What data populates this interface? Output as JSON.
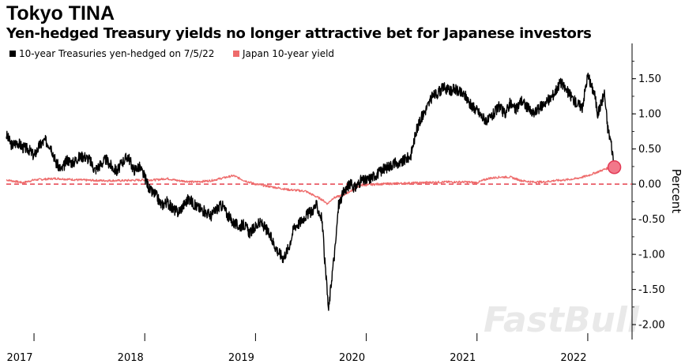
{
  "page": {
    "title": "Tokyo TINA",
    "subtitle": "Yen-hedged Treasury yields no longer attractive bet for Japanese investors",
    "watermark": "FastBull"
  },
  "colors": {
    "series1": "#000000",
    "series2": "#ee6b6b",
    "zero_line": "#e8505b",
    "marker": "#f2788a"
  },
  "chart_data": {
    "type": "line",
    "title": "Tokyo TINA",
    "subtitle": "Yen-hedged Treasury yields no longer attractive bet for Japanese investors",
    "ylabel": "Percent",
    "xlabel": "",
    "ylim": [
      -2.1,
      1.98
    ],
    "xlim": [
      2016.75,
      2022.4
    ],
    "y_ticks": [
      1.5,
      1.0,
      0.5,
      0.0,
      -0.5,
      -1.0,
      -1.5,
      -2.0
    ],
    "y_tick_labels": [
      "1.50",
      "1.00",
      "0.50",
      "0.00",
      "-0.50",
      "-1.00",
      "-1.50",
      "-2.00"
    ],
    "x_ticks": [
      2017,
      2018,
      2019,
      2020,
      2021,
      2022
    ],
    "x_tick_labels": [
      "2017",
      "2018",
      "2019",
      "2020",
      "2021",
      "2022"
    ],
    "legend_position": "top-left",
    "series": [
      {
        "name": "10-year Treasuries yen-hedged on 7/5/22",
        "x": [
          2016.75,
          2016.8,
          2016.85,
          2016.9,
          2016.95,
          2017.0,
          2017.05,
          2017.1,
          2017.15,
          2017.2,
          2017.25,
          2017.3,
          2017.35,
          2017.4,
          2017.45,
          2017.5,
          2017.55,
          2017.6,
          2017.65,
          2017.7,
          2017.75,
          2017.8,
          2017.85,
          2017.9,
          2017.95,
          2018.0,
          2018.05,
          2018.1,
          2018.15,
          2018.2,
          2018.25,
          2018.3,
          2018.35,
          2018.4,
          2018.45,
          2018.5,
          2018.55,
          2018.6,
          2018.65,
          2018.7,
          2018.75,
          2018.8,
          2018.85,
          2018.9,
          2018.95,
          2019.0,
          2019.05,
          2019.1,
          2019.15,
          2019.2,
          2019.25,
          2019.3,
          2019.35,
          2019.4,
          2019.45,
          2019.5,
          2019.55,
          2019.6,
          2019.63,
          2019.66,
          2019.69,
          2019.72,
          2019.75,
          2019.8,
          2019.85,
          2019.9,
          2019.95,
          2020.0,
          2020.05,
          2020.1,
          2020.15,
          2020.2,
          2020.25,
          2020.3,
          2020.35,
          2020.4,
          2020.45,
          2020.5,
          2020.55,
          2020.6,
          2020.65,
          2020.7,
          2020.75,
          2020.8,
          2020.85,
          2020.9,
          2020.95,
          2021.0,
          2021.05,
          2021.1,
          2021.15,
          2021.2,
          2021.25,
          2021.3,
          2021.35,
          2021.4,
          2021.45,
          2021.5,
          2021.55,
          2021.6,
          2021.65,
          2021.7,
          2021.75,
          2021.8,
          2021.85,
          2021.9,
          2021.95,
          2022.0,
          2022.03,
          2022.06,
          2022.09,
          2022.12,
          2022.15,
          2022.18,
          2022.21,
          2022.24
        ],
        "values": [
          0.7,
          0.55,
          0.6,
          0.52,
          0.5,
          0.4,
          0.55,
          0.62,
          0.55,
          0.3,
          0.2,
          0.35,
          0.3,
          0.38,
          0.4,
          0.35,
          0.2,
          0.28,
          0.35,
          0.25,
          0.18,
          0.32,
          0.4,
          0.2,
          0.25,
          0.1,
          -0.1,
          -0.15,
          -0.3,
          -0.25,
          -0.35,
          -0.4,
          -0.3,
          -0.2,
          -0.3,
          -0.35,
          -0.4,
          -0.45,
          -0.35,
          -0.3,
          -0.45,
          -0.55,
          -0.6,
          -0.58,
          -0.7,
          -0.6,
          -0.55,
          -0.65,
          -0.8,
          -0.95,
          -1.05,
          -0.9,
          -0.6,
          -0.55,
          -0.45,
          -0.4,
          -0.3,
          -0.5,
          -1.2,
          -1.8,
          -1.3,
          -0.9,
          -0.3,
          -0.1,
          0.0,
          -0.05,
          0.05,
          0.05,
          0.1,
          0.15,
          0.2,
          0.25,
          0.3,
          0.28,
          0.35,
          0.4,
          0.75,
          0.95,
          1.1,
          1.25,
          1.3,
          1.38,
          1.32,
          1.35,
          1.3,
          1.25,
          1.1,
          1.05,
          0.95,
          0.9,
          1.0,
          1.1,
          1.0,
          1.15,
          1.05,
          1.2,
          1.1,
          1.0,
          1.05,
          1.15,
          1.2,
          1.3,
          1.45,
          1.35,
          1.25,
          1.15,
          1.1,
          1.55,
          1.4,
          1.3,
          1.0,
          1.15,
          1.3,
          0.8,
          0.6,
          0.25
        ]
      },
      {
        "name": "Japan 10-year yield",
        "x": [
          2016.75,
          2016.9,
          2017.0,
          2017.2,
          2017.4,
          2017.6,
          2017.8,
          2018.0,
          2018.1,
          2018.2,
          2018.3,
          2018.45,
          2018.6,
          2018.8,
          2018.9,
          2019.0,
          2019.15,
          2019.3,
          2019.45,
          2019.6,
          2019.65,
          2019.7,
          2019.8,
          2019.95,
          2020.1,
          2020.3,
          2020.5,
          2020.7,
          2020.9,
          2021.0,
          2021.1,
          2021.2,
          2021.3,
          2021.4,
          2021.5,
          2021.6,
          2021.7,
          2021.8,
          2021.9,
          2022.0,
          2022.1,
          2022.2,
          2022.24
        ],
        "values": [
          0.06,
          0.02,
          0.06,
          0.08,
          0.06,
          0.05,
          0.05,
          0.06,
          0.06,
          0.08,
          0.05,
          0.03,
          0.05,
          0.12,
          0.05,
          0.0,
          -0.04,
          -0.08,
          -0.1,
          -0.22,
          -0.28,
          -0.2,
          -0.15,
          -0.02,
          0.0,
          0.01,
          0.02,
          0.03,
          0.03,
          0.02,
          0.08,
          0.1,
          0.1,
          0.05,
          0.03,
          0.03,
          0.05,
          0.06,
          0.08,
          0.12,
          0.18,
          0.24,
          0.24
        ]
      }
    ],
    "highlight_point": {
      "x": 2022.24,
      "y": 0.24
    },
    "reference_line": {
      "y": 0.0,
      "style": "dashed"
    }
  }
}
